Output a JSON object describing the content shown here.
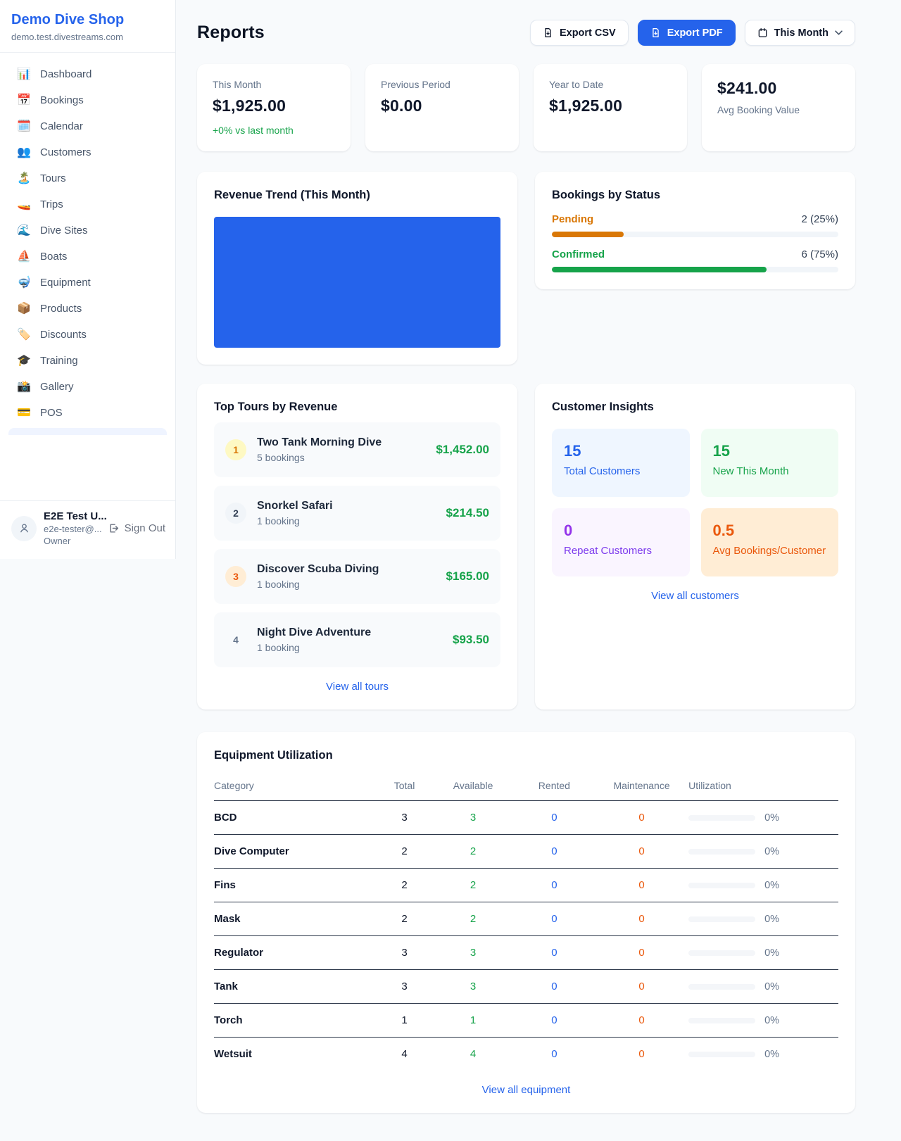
{
  "colors": {
    "accent": "#2563eb",
    "green": "#16a34a",
    "pending_orange": "#d97706",
    "deep_orange": "#ea580c",
    "purple": "#9333ea"
  },
  "brand": {
    "name": "Demo Dive Shop",
    "domain": "demo.test.divestreams.com"
  },
  "sidebar": {
    "items": [
      {
        "icon": "📊",
        "label": "Dashboard"
      },
      {
        "icon": "📅",
        "label": "Bookings"
      },
      {
        "icon": "🗓️",
        "label": "Calendar"
      },
      {
        "icon": "👥",
        "label": "Customers"
      },
      {
        "icon": "🏝️",
        "label": "Tours"
      },
      {
        "icon": "🚤",
        "label": "Trips"
      },
      {
        "icon": "🌊",
        "label": "Dive Sites"
      },
      {
        "icon": "⛵",
        "label": "Boats"
      },
      {
        "icon": "🤿",
        "label": "Equipment"
      },
      {
        "icon": "📦",
        "label": "Products"
      },
      {
        "icon": "🏷️",
        "label": "Discounts"
      },
      {
        "icon": "🎓",
        "label": "Training"
      },
      {
        "icon": "📸",
        "label": "Gallery"
      },
      {
        "icon": "💳",
        "label": "POS"
      }
    ]
  },
  "user": {
    "name": "E2E Test U...",
    "email": "e2e-tester@...",
    "role": "Owner",
    "sign_out_label": "Sign Out"
  },
  "header": {
    "title": "Reports",
    "export_csv_label": "Export CSV",
    "export_pdf_label": "Export PDF",
    "period_label": "This Month"
  },
  "stats": {
    "this_month": {
      "label": "This Month",
      "value": "$1,925.00",
      "delta": "+0% vs last month"
    },
    "previous_period": {
      "label": "Previous Period",
      "value": "$0.00"
    },
    "year_to_date": {
      "label": "Year to Date",
      "value": "$1,925.00"
    },
    "avg_booking": {
      "value": "$241.00",
      "label": "Avg Booking Value"
    }
  },
  "revenue_trend": {
    "title": "Revenue Trend (This Month)",
    "bar_color": "#2563eb",
    "bar_fill_pct": 100
  },
  "bookings_by_status": {
    "title": "Bookings by Status",
    "rows": [
      {
        "label": "Pending",
        "count_text": "2 (25%)",
        "pct": 25
      },
      {
        "label": "Confirmed",
        "count_text": "6 (75%)",
        "pct": 75
      }
    ]
  },
  "top_tours": {
    "title": "Top Tours by Revenue",
    "view_all": "View all tours",
    "rows": [
      {
        "rank": "1",
        "name": "Two Tank Morning Dive",
        "bookings": "5 bookings",
        "revenue": "$1,452.00"
      },
      {
        "rank": "2",
        "name": "Snorkel Safari",
        "bookings": "1 booking",
        "revenue": "$214.50"
      },
      {
        "rank": "3",
        "name": "Discover Scuba Diving",
        "bookings": "1 booking",
        "revenue": "$165.00"
      },
      {
        "rank": "4",
        "name": "Night Dive Adventure",
        "bookings": "1 booking",
        "revenue": "$93.50"
      }
    ]
  },
  "customer_insights": {
    "title": "Customer Insights",
    "view_all": "View all customers",
    "tiles": [
      {
        "value": "15",
        "label": "Total Customers"
      },
      {
        "value": "15",
        "label": "New This Month"
      },
      {
        "value": "0",
        "label": "Repeat Customers"
      },
      {
        "value": "0.5",
        "label": "Avg Bookings/Customer"
      }
    ]
  },
  "equipment": {
    "title": "Equipment Utilization",
    "view_all": "View all equipment",
    "columns": [
      "Category",
      "Total",
      "Available",
      "Rented",
      "Maintenance",
      "Utilization"
    ],
    "rows": [
      {
        "category": "BCD",
        "total": "3",
        "available": "3",
        "rented": "0",
        "maintenance": "0",
        "utilization_pct": 0,
        "utilization_text": "0%"
      },
      {
        "category": "Dive Computer",
        "total": "2",
        "available": "2",
        "rented": "0",
        "maintenance": "0",
        "utilization_pct": 0,
        "utilization_text": "0%"
      },
      {
        "category": "Fins",
        "total": "2",
        "available": "2",
        "rented": "0",
        "maintenance": "0",
        "utilization_pct": 0,
        "utilization_text": "0%"
      },
      {
        "category": "Mask",
        "total": "2",
        "available": "2",
        "rented": "0",
        "maintenance": "0",
        "utilization_pct": 0,
        "utilization_text": "0%"
      },
      {
        "category": "Regulator",
        "total": "3",
        "available": "3",
        "rented": "0",
        "maintenance": "0",
        "utilization_pct": 0,
        "utilization_text": "0%"
      },
      {
        "category": "Tank",
        "total": "3",
        "available": "3",
        "rented": "0",
        "maintenance": "0",
        "utilization_pct": 0,
        "utilization_text": "0%"
      },
      {
        "category": "Torch",
        "total": "1",
        "available": "1",
        "rented": "0",
        "maintenance": "0",
        "utilization_pct": 0,
        "utilization_text": "0%"
      },
      {
        "category": "Wetsuit",
        "total": "4",
        "available": "4",
        "rented": "0",
        "maintenance": "0",
        "utilization_pct": 0,
        "utilization_text": "0%"
      }
    ]
  }
}
